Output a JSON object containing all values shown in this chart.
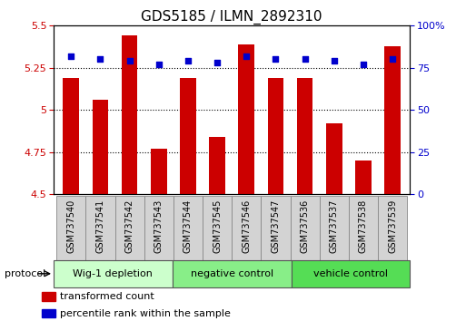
{
  "title": "GDS5185 / ILMN_2892310",
  "samples": [
    "GSM737540",
    "GSM737541",
    "GSM737542",
    "GSM737543",
    "GSM737544",
    "GSM737545",
    "GSM737546",
    "GSM737547",
    "GSM737536",
    "GSM737537",
    "GSM737538",
    "GSM737539"
  ],
  "bar_values": [
    5.19,
    5.06,
    5.44,
    4.77,
    5.19,
    4.84,
    5.39,
    5.19,
    5.19,
    4.92,
    4.7,
    5.38
  ],
  "percentile_values": [
    82,
    80,
    79,
    77,
    79,
    78,
    82,
    80,
    80,
    79,
    77,
    80
  ],
  "ylim_left": [
    4.5,
    5.5
  ],
  "ylim_right": [
    0,
    100
  ],
  "yticks_left": [
    4.5,
    4.75,
    5.0,
    5.25,
    5.5
  ],
  "yticks_right": [
    0,
    25,
    50,
    75,
    100
  ],
  "grid_lines": [
    4.75,
    5.0,
    5.25
  ],
  "bar_color": "#cc0000",
  "dot_color": "#0000cc",
  "bar_base": 4.5,
  "groups": [
    {
      "label": "Wig-1 depletion",
      "start": 0,
      "end": 4
    },
    {
      "label": "negative control",
      "start": 4,
      "end": 8
    },
    {
      "label": "vehicle control",
      "start": 8,
      "end": 12
    }
  ],
  "group_colors": [
    "#ccffcc",
    "#88ee88",
    "#55dd55"
  ],
  "protocol_label": "protocol",
  "legend_bar_label": "transformed count",
  "legend_dot_label": "percentile rank within the sample",
  "left_tick_color": "#cc0000",
  "right_tick_color": "#0000cc",
  "title_fontsize": 11,
  "tick_fontsize": 8,
  "sample_fontsize": 7,
  "group_fontsize": 8,
  "legend_fontsize": 8,
  "protocol_fontsize": 8
}
